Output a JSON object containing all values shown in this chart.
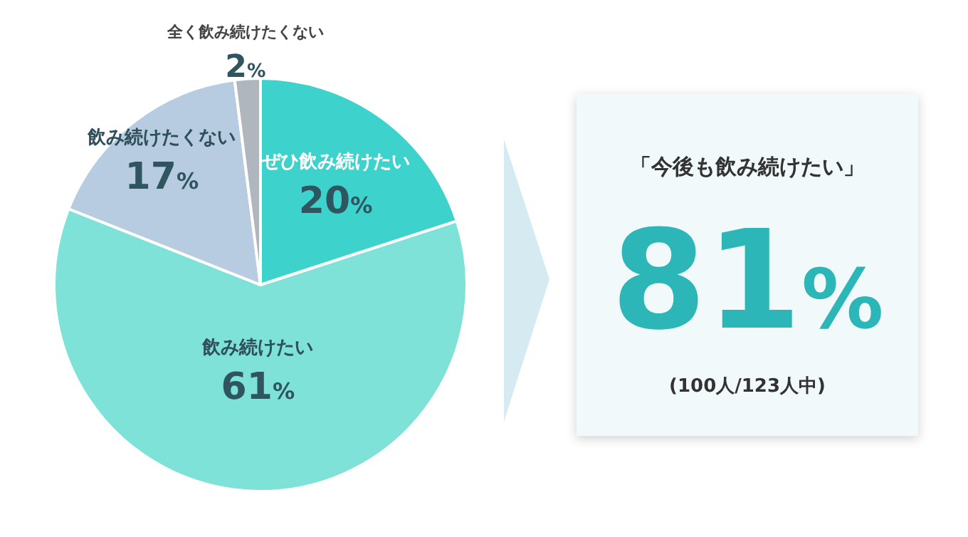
{
  "chart_data": [
    {
      "type": "pie",
      "categories": [
        "ぜひ飲み続けたい",
        "飲み続けたい",
        "飲み続けたくない",
        "全く飲み続けたくない"
      ],
      "values": [
        20,
        61,
        17,
        2
      ],
      "colors": [
        "#3dd3cc",
        "#7fe2d8",
        "#b7cce0",
        "#b0b6bd"
      ],
      "value_labels": [
        "20%",
        "61%",
        "17%",
        "2%"
      ]
    },
    {
      "type": "other",
      "annotations": [
        "「今後も飲み続けたい」",
        "81%",
        "(100人/123人中)"
      ]
    }
  ]
}
